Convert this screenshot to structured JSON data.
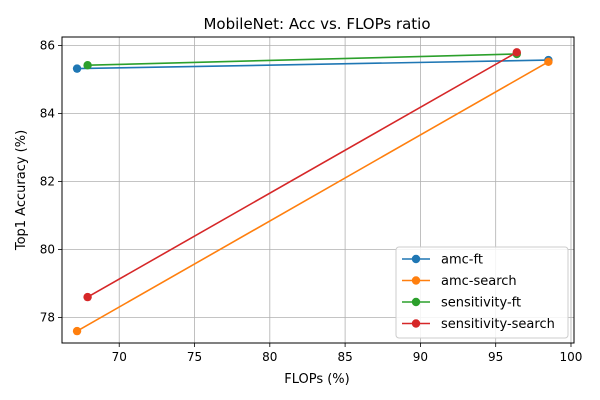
{
  "chart_data": {
    "type": "line",
    "title": "MobileNet: Acc vs. FLOPs ratio",
    "xlabel": "FLOPs (%)",
    "ylabel": "Top1 Accuracy (%)",
    "xlim": [
      66.2,
      100.2
    ],
    "ylim": [
      77.25,
      86.25
    ],
    "xticks": [
      70,
      75,
      80,
      85,
      90,
      95,
      100
    ],
    "yticks": [
      78,
      80,
      82,
      84,
      86
    ],
    "grid": true,
    "legend_position": "lower-right",
    "series": [
      {
        "name": "amc-ft",
        "color": "#1f77b4",
        "x": [
          67.2,
          98.5
        ],
        "y": [
          85.32,
          85.57
        ]
      },
      {
        "name": "amc-search",
        "color": "#ff7f0e",
        "x": [
          67.2,
          98.5
        ],
        "y": [
          77.6,
          85.52
        ]
      },
      {
        "name": "sensitivity-ft",
        "color": "#2ca02c",
        "x": [
          67.9,
          96.4
        ],
        "y": [
          85.42,
          85.75
        ]
      },
      {
        "name": "sensitivity-search",
        "color": "#d62728",
        "x": [
          67.9,
          96.4
        ],
        "y": [
          78.6,
          85.8
        ]
      }
    ]
  }
}
